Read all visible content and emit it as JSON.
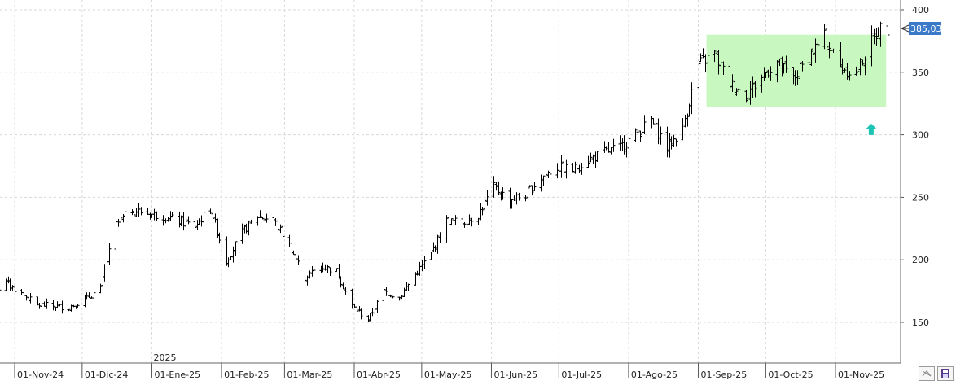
{
  "colors": {
    "background": "#ffffff",
    "grid": "#d8d8d8",
    "bars": "#000000",
    "highlight_zone": "#c8f7c0",
    "arrow": "#20c4b4",
    "price_tag_bg": "#3a78c8",
    "price_tag_text": "#ffffff"
  },
  "icons": {
    "signal": "up-arrow-icon",
    "toolbar_left": "expand-icon",
    "toolbar_right": "save-icon"
  },
  "chart_data": {
    "type": "ohlc",
    "title": "",
    "xlabel": "",
    "ylabel": "",
    "ylim": [
      122,
      403
    ],
    "yticks": [
      150,
      200,
      250,
      300,
      350,
      400
    ],
    "y_axis_side": "right",
    "grid": true,
    "last_price": "385,03",
    "year_marker": {
      "label": "2025",
      "date": "2025-01-01"
    },
    "x_tick_labels": [
      {
        "date": "2024-11-01",
        "label": "01-Nov-24"
      },
      {
        "date": "2024-12-01",
        "label": "01-Dic-24"
      },
      {
        "date": "2025-01-01",
        "label": "01-Ene-25"
      },
      {
        "date": "2025-02-01",
        "label": "01-Feb-25"
      },
      {
        "date": "2025-03-01",
        "label": "01-Mar-25"
      },
      {
        "date": "2025-04-01",
        "label": "01-Abr-25"
      },
      {
        "date": "2025-05-01",
        "label": "01-May-25"
      },
      {
        "date": "2025-06-01",
        "label": "01-Jun-25"
      },
      {
        "date": "2025-07-01",
        "label": "01-Jul-25"
      },
      {
        "date": "2025-08-01",
        "label": "01-Ago-25"
      },
      {
        "date": "2025-09-01",
        "label": "01-Sep-25"
      },
      {
        "date": "2025-10-01",
        "label": "01-Oct-25"
      },
      {
        "date": "2025-11-01",
        "label": "01-Nov-25"
      }
    ],
    "x_range": [
      "2024-10-14",
      "2025-11-24"
    ],
    "highlight_zone": {
      "x": [
        "2025-09-01",
        "2025-11-21"
      ],
      "y": [
        322,
        380
      ]
    },
    "signal_arrow": {
      "date": "2025-11-14",
      "value": 305,
      "direction": "up"
    },
    "series": [
      {
        "points": [
          {
            "x": "2024-10-14",
            "y": 176
          },
          {
            "x": "2024-10-21",
            "y": 171
          },
          {
            "x": "2024-10-28",
            "y": 182
          },
          {
            "x": "2024-11-04",
            "y": 173
          },
          {
            "x": "2024-11-11",
            "y": 164
          },
          {
            "x": "2024-11-18",
            "y": 163
          },
          {
            "x": "2024-11-25",
            "y": 162
          },
          {
            "x": "2024-12-02",
            "y": 168
          },
          {
            "x": "2024-12-09",
            "y": 177
          },
          {
            "x": "2024-12-16",
            "y": 228
          },
          {
            "x": "2024-12-23",
            "y": 240
          },
          {
            "x": "2024-12-30",
            "y": 237
          },
          {
            "x": "2025-01-06",
            "y": 235
          },
          {
            "x": "2025-01-13",
            "y": 231
          },
          {
            "x": "2025-01-20",
            "y": 227
          },
          {
            "x": "2025-01-27",
            "y": 241
          },
          {
            "x": "2025-02-03",
            "y": 199
          },
          {
            "x": "2025-02-10",
            "y": 222
          },
          {
            "x": "2025-02-17",
            "y": 235
          },
          {
            "x": "2025-02-24",
            "y": 232
          },
          {
            "x": "2025-03-03",
            "y": 212
          },
          {
            "x": "2025-03-10",
            "y": 186
          },
          {
            "x": "2025-03-17",
            "y": 195
          },
          {
            "x": "2025-03-24",
            "y": 191
          },
          {
            "x": "2025-03-31",
            "y": 163
          },
          {
            "x": "2025-04-07",
            "y": 152
          },
          {
            "x": "2025-04-14",
            "y": 175
          },
          {
            "x": "2025-04-21",
            "y": 170
          },
          {
            "x": "2025-04-28",
            "y": 188
          },
          {
            "x": "2025-05-05",
            "y": 205
          },
          {
            "x": "2025-05-12",
            "y": 231
          },
          {
            "x": "2025-05-19",
            "y": 230
          },
          {
            "x": "2025-05-26",
            "y": 236
          },
          {
            "x": "2025-06-02",
            "y": 258
          },
          {
            "x": "2025-06-09",
            "y": 248
          },
          {
            "x": "2025-06-16",
            "y": 252
          },
          {
            "x": "2025-06-23",
            "y": 266
          },
          {
            "x": "2025-06-30",
            "y": 274
          },
          {
            "x": "2025-07-07",
            "y": 272
          },
          {
            "x": "2025-07-14",
            "y": 280
          },
          {
            "x": "2025-07-21",
            "y": 286
          },
          {
            "x": "2025-07-28",
            "y": 290
          },
          {
            "x": "2025-08-04",
            "y": 300
          },
          {
            "x": "2025-08-11",
            "y": 311
          },
          {
            "x": "2025-08-18",
            "y": 290
          },
          {
            "x": "2025-08-25",
            "y": 305
          },
          {
            "x": "2025-09-01",
            "y": 356
          },
          {
            "x": "2025-09-08",
            "y": 365
          },
          {
            "x": "2025-09-15",
            "y": 341
          },
          {
            "x": "2025-09-22",
            "y": 332
          },
          {
            "x": "2025-09-29",
            "y": 346
          },
          {
            "x": "2025-10-06",
            "y": 358
          },
          {
            "x": "2025-10-13",
            "y": 344
          },
          {
            "x": "2025-10-20",
            "y": 363
          },
          {
            "x": "2025-10-27",
            "y": 378
          },
          {
            "x": "2025-11-03",
            "y": 355
          },
          {
            "x": "2025-11-10",
            "y": 348
          },
          {
            "x": "2025-11-17",
            "y": 376
          },
          {
            "x": "2025-11-21",
            "y": 385
          }
        ]
      }
    ]
  }
}
